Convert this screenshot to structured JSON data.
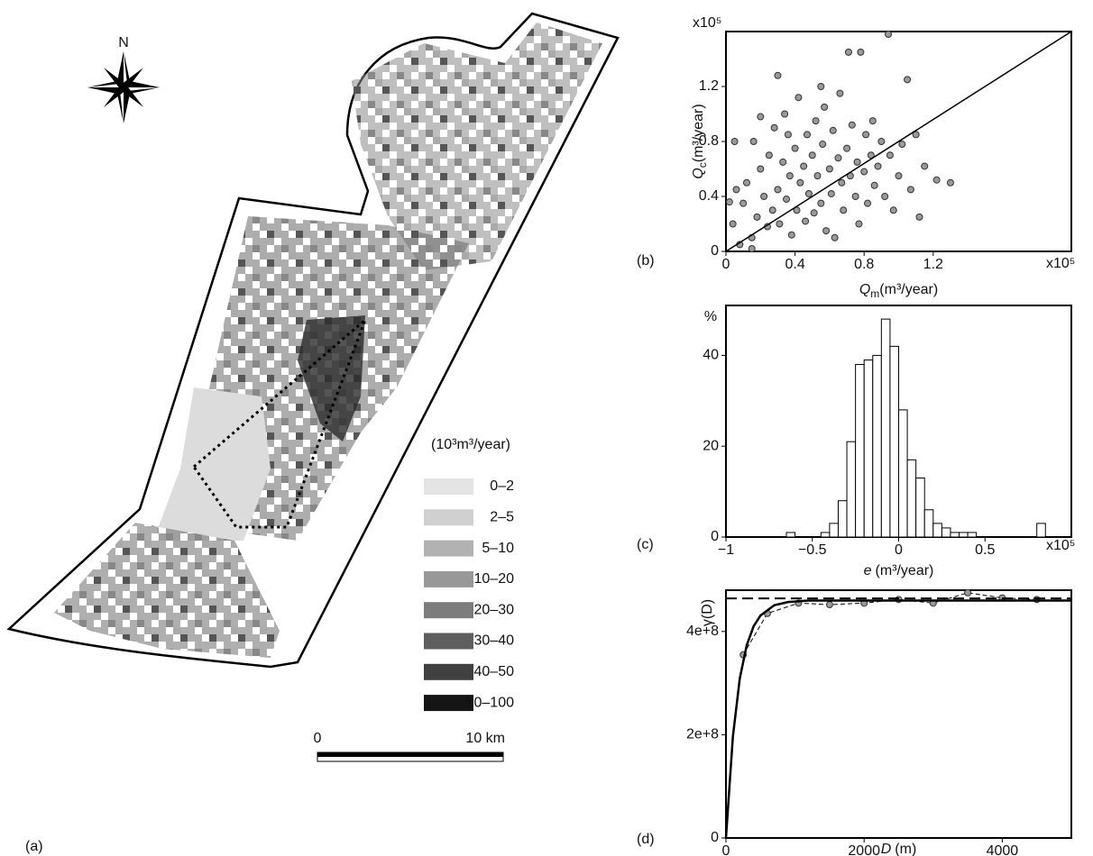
{
  "chart_data": [
    {
      "type": "map",
      "panel": "(a)",
      "north": "N",
      "legend": {
        "title": "(10³m³/year)",
        "categories": [
          "0–2",
          "2–5",
          "5–10",
          "10–20",
          "20–30",
          "30–40",
          "40–50",
          "50–100"
        ],
        "colors": [
          "#e4e4e4",
          "#d0d0d0",
          "#b2b2b2",
          "#989898",
          "#7c7c7c",
          "#5e5e5e",
          "#404040",
          "#151515"
        ]
      },
      "scale_labels": [
        "0",
        "10 km"
      ]
    },
    {
      "type": "scatter",
      "panel": "(b)",
      "color": "#9a9a9a",
      "x_label": {
        "symbol": "Q",
        "subscript": "m",
        "unit": "(m³/year)"
      },
      "y_label": {
        "symbol": "Q",
        "subscript": "c",
        "unit": "(m³/year)"
      },
      "x_multiplier": "x10⁵",
      "y_multiplier": "x10⁵",
      "xlim": [
        0,
        2.0
      ],
      "ylim": [
        0,
        1.6
      ],
      "xticks": [
        0,
        0.4,
        0.8,
        1.2
      ],
      "yticks": [
        0,
        0.4,
        0.8,
        1.2
      ],
      "x": [
        0.02,
        0.05,
        0.04,
        0.08,
        0.1,
        0.12,
        0.15,
        0.16,
        0.18,
        0.2,
        0.22,
        0.24,
        0.25,
        0.27,
        0.28,
        0.3,
        0.31,
        0.33,
        0.34,
        0.35,
        0.37,
        0.38,
        0.4,
        0.41,
        0.42,
        0.43,
        0.45,
        0.46,
        0.47,
        0.48,
        0.5,
        0.51,
        0.52,
        0.53,
        0.55,
        0.56,
        0.57,
        0.58,
        0.6,
        0.61,
        0.62,
        0.63,
        0.65,
        0.66,
        0.67,
        0.68,
        0.7,
        0.71,
        0.72,
        0.73,
        0.75,
        0.76,
        0.77,
        0.78,
        0.8,
        0.81,
        0.82,
        0.84,
        0.85,
        0.86,
        0.88,
        0.9,
        0.92,
        0.94,
        0.95,
        0.97,
        1.0,
        1.02,
        1.05,
        1.07,
        1.1,
        1.12,
        1.15,
        1.22,
        1.3,
        0.15,
        0.06,
        0.36,
        0.55,
        0.3,
        0.2
      ],
      "values": [
        0.36,
        0.8,
        0.2,
        0.05,
        0.35,
        0.5,
        0.1,
        0.8,
        0.25,
        0.6,
        0.4,
        0.18,
        0.7,
        0.3,
        0.9,
        0.45,
        0.2,
        0.65,
        1.0,
        0.38,
        0.55,
        0.12,
        0.75,
        0.3,
        1.12,
        0.5,
        0.62,
        0.22,
        0.85,
        0.42,
        0.7,
        0.28,
        0.95,
        0.55,
        0.35,
        0.78,
        1.05,
        0.15,
        0.6,
        0.42,
        0.88,
        0.1,
        0.68,
        1.15,
        0.5,
        0.3,
        0.75,
        1.45,
        0.55,
        0.92,
        0.4,
        0.65,
        0.2,
        1.45,
        0.58,
        0.85,
        0.35,
        0.7,
        0.95,
        0.48,
        0.62,
        0.8,
        0.4,
        1.58,
        0.7,
        0.3,
        0.55,
        0.78,
        1.25,
        0.45,
        0.85,
        0.25,
        0.62,
        0.52,
        0.5,
        0.02,
        0.45,
        0.85,
        1.2,
        1.28,
        0.98
      ],
      "fit": {
        "x": [
          0,
          2.0
        ],
        "values": [
          0,
          1.6
        ]
      }
    },
    {
      "type": "histogram",
      "panel": "(c)",
      "y_label": "%",
      "x_label": {
        "symbol": "e",
        "unit": "(m³/year)"
      },
      "x_multiplier": "x10⁵",
      "xlim": [
        -1,
        1
      ],
      "ylim": [
        0,
        51
      ],
      "xticks": [
        {
          "value": -1,
          "label": "−1"
        },
        {
          "value": -0.5,
          "label": "−0.5"
        },
        0,
        0.5
      ],
      "yticks": [
        0,
        20,
        40
      ],
      "bins": [
        -0.65,
        -0.6,
        -0.55,
        -0.5,
        -0.45,
        -0.4,
        -0.35,
        -0.3,
        -0.25,
        -0.2,
        -0.15,
        -0.1,
        -0.05,
        0,
        0.05,
        0.1,
        0.15,
        0.2,
        0.25,
        0.3,
        0.35,
        0.4,
        0.45,
        0.5,
        0.55,
        0.6,
        0.65,
        0.7,
        0.75,
        0.8,
        0.85
      ],
      "counts": [
        1,
        0,
        0,
        0,
        1,
        3,
        8,
        21,
        38,
        39,
        40,
        48,
        42,
        28,
        17,
        13,
        6,
        3,
        2,
        1,
        1,
        1,
        0,
        0,
        0,
        0,
        0,
        0,
        0,
        3
      ]
    },
    {
      "type": "line",
      "panel": "(d)",
      "y_label": "γ(D)",
      "x_label": {
        "symbol": "D",
        "unit": "(m)"
      },
      "xlim": [
        0,
        5000
      ],
      "ylim": [
        0,
        480000000
      ],
      "xticks": [
        0,
        2000,
        4000
      ],
      "yticks": [
        0,
        {
          "value": 200000000,
          "label": "2e+8"
        },
        {
          "value": 400000000,
          "label": "4e+8"
        }
      ],
      "series": [
        {
          "x": [
            250,
            600,
            1050,
            1500,
            2000,
            2500,
            3000,
            3500,
            4000,
            4500
          ],
          "values": [
            355000000,
            435000000,
            455000000,
            452000000,
            455000000,
            462000000,
            455000000,
            475000000,
            465000000,
            462000000
          ],
          "line_style": "dashed",
          "markers": true
        },
        {
          "x": [
            0,
            100,
            200,
            300,
            400,
            500,
            700,
            900,
            1200,
            5000
          ],
          "values": [
            0,
            196000000,
            309000000,
            373000000,
            410000000,
            431000000,
            451000000,
            457000000,
            460000000,
            460000000
          ],
          "line_style": "solid",
          "markers": false
        },
        {
          "x": [
            0,
            5000
          ],
          "values": [
            464000000,
            464000000
          ],
          "line_style": "long-dashed",
          "markers": false
        }
      ]
    }
  ]
}
